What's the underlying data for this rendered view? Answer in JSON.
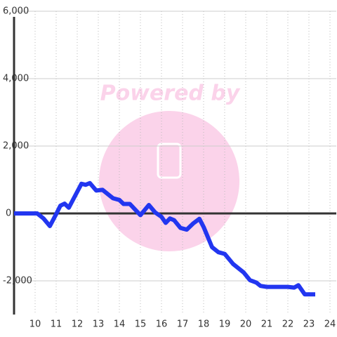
{
  "chart_data": {
    "type": "line",
    "watermark": "Powered by",
    "x": [
      9.0,
      10.1,
      10.4,
      10.7,
      11.0,
      11.2,
      11.4,
      11.6,
      12.2,
      12.4,
      12.6,
      12.9,
      13.2,
      13.5,
      13.7,
      14.0,
      14.2,
      14.5,
      15.0,
      15.4,
      15.7,
      16.0,
      16.2,
      16.4,
      16.6,
      16.9,
      17.2,
      17.5,
      17.8,
      18.0,
      18.4,
      18.7,
      19.0,
      19.4,
      19.9,
      20.2,
      20.5,
      20.7,
      21.0,
      21.7,
      22.0,
      22.3,
      22.5,
      22.8,
      23.3
    ],
    "series": [
      {
        "color": "#2236f0",
        "values": [
          0,
          0,
          -150,
          -375,
          -20,
          230,
          290,
          170,
          880,
          850,
          900,
          680,
          700,
          550,
          450,
          400,
          280,
          280,
          -50,
          250,
          30,
          -100,
          -280,
          -150,
          -200,
          -430,
          -480,
          -300,
          -160,
          -400,
          -1000,
          -1150,
          -1200,
          -1500,
          -1750,
          -1980,
          -2050,
          -2150,
          -2180,
          -2180,
          -2180,
          -2200,
          -2130,
          -2400,
          -2400
        ]
      }
    ],
    "xlim": [
      9,
      24.3
    ],
    "xticks": [
      10,
      11,
      12,
      13,
      14,
      15,
      16,
      17,
      18,
      19,
      20,
      21,
      22,
      23,
      24
    ],
    "ylim": [
      -3000,
      6000
    ],
    "yticks": [
      {
        "value": -2000,
        "label": "-2,000"
      },
      0,
      {
        "value": 2000,
        "label": "2,000"
      },
      {
        "value": 4000,
        "label": "4,000"
      },
      {
        "value": 6000,
        "label": "6,000"
      }
    ],
    "grid": true
  }
}
